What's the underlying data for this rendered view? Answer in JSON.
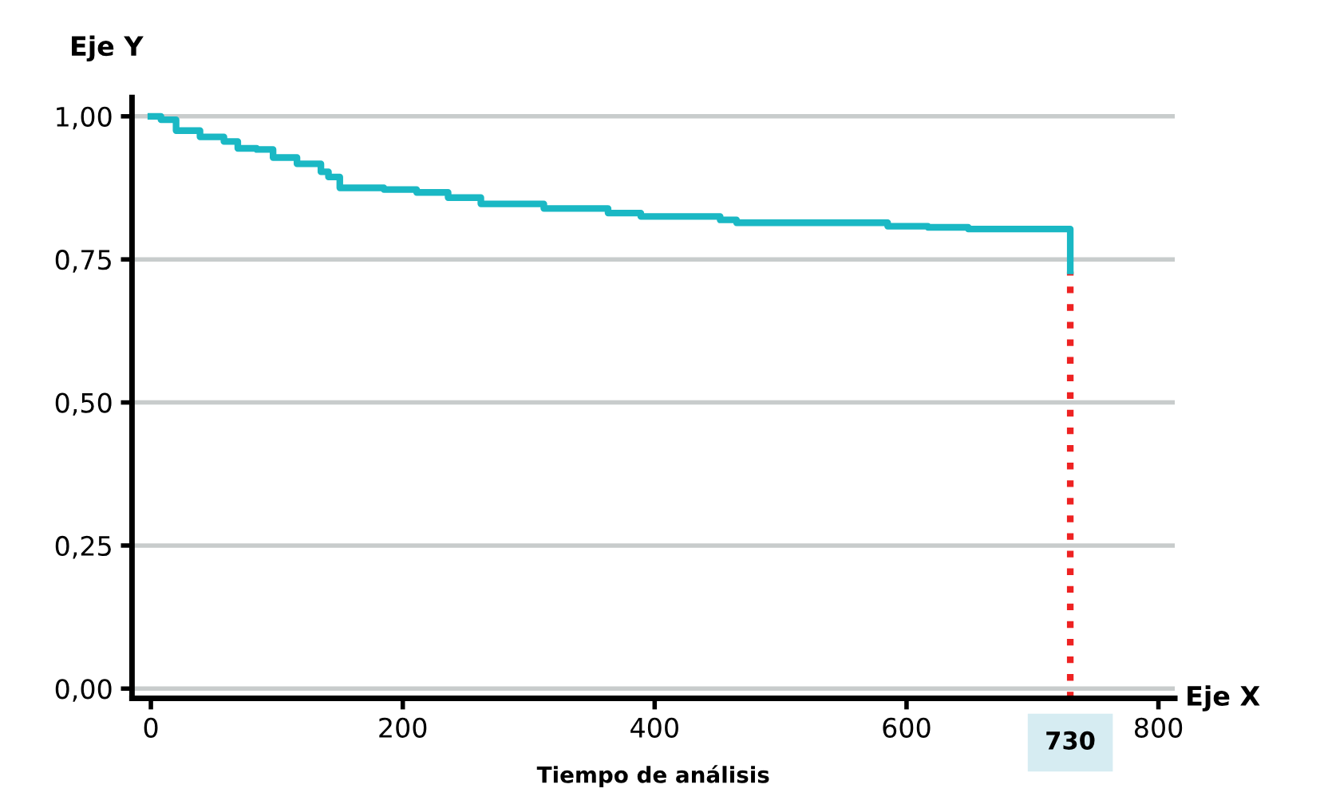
{
  "chart_data": {
    "type": "step",
    "ylabel": "Eje Y",
    "xlabel": "Tiempo de análisis",
    "annotations": [
      "Eje X"
    ],
    "x": [
      0,
      8,
      20,
      39,
      58,
      69,
      84,
      97,
      116,
      135,
      141,
      150,
      185,
      211,
      236,
      262,
      312,
      363,
      389,
      452,
      465,
      572,
      585,
      617,
      649,
      730,
      730
    ],
    "series": [
      {
        "color": "#1ab8c4",
        "values": [
          1.0,
          0.994,
          0.975,
          0.964,
          0.956,
          0.944,
          0.942,
          0.928,
          0.917,
          0.903,
          0.894,
          0.875,
          0.872,
          0.867,
          0.858,
          0.847,
          0.839,
          0.831,
          0.825,
          0.819,
          0.814,
          0.814,
          0.808,
          0.806,
          0.803,
          0.803,
          0.73
        ]
      }
    ],
    "xlim": [
      -15,
      813
    ],
    "ylim": [
      -0.017,
      1.033
    ],
    "xticks": [
      0,
      200,
      400,
      600,
      800
    ],
    "yticks": [
      {
        "value": 0,
        "label": "0,00"
      },
      {
        "value": 0.25,
        "label": "0,25"
      },
      {
        "value": 0.5,
        "label": "0,50"
      },
      {
        "value": 0.75,
        "label": "0,75"
      },
      {
        "value": 1.0,
        "label": "1,00"
      }
    ],
    "grid": "y",
    "legend": false,
    "ref_lines": [
      {
        "axis": "x",
        "value": 730,
        "label": "730",
        "color": "#ee2222",
        "line_style": "dotted"
      }
    ]
  }
}
